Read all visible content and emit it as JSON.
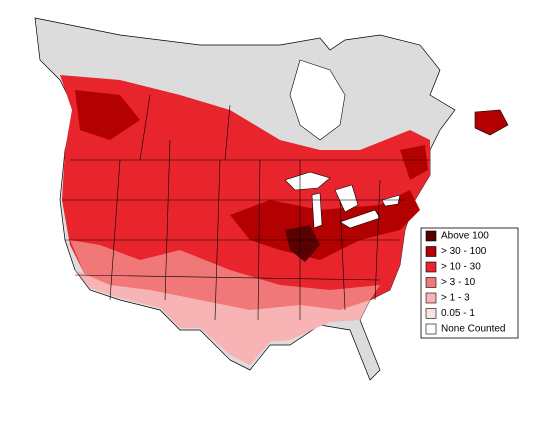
{
  "legend": {
    "items": [
      {
        "label": "Above 100",
        "color": "#5a0000"
      },
      {
        "label": "> 30 - 100",
        "color": "#b30000"
      },
      {
        "label": "> 10 - 30",
        "color": "#e8242c"
      },
      {
        "label": "> 3 - 10",
        "color": "#f07878"
      },
      {
        "label": "> 1 - 3",
        "color": "#f8b4b4"
      },
      {
        "label": "0.05 - 1",
        "color": "#fde2e2"
      },
      {
        "label": "None Counted",
        "color": "#ffffff"
      }
    ]
  }
}
